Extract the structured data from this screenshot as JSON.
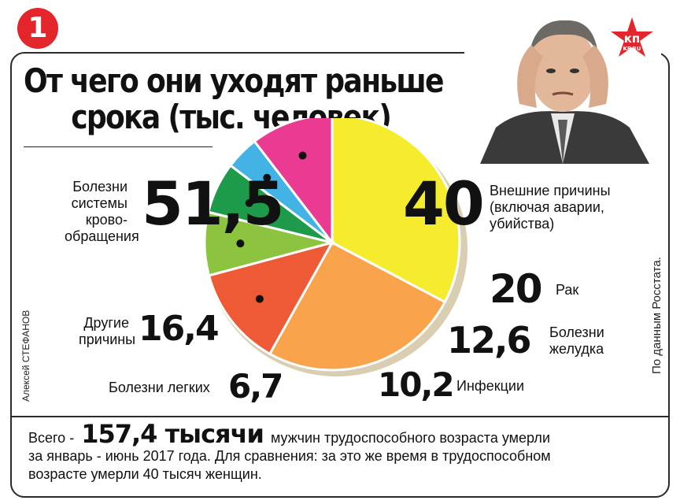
{
  "badge": "1",
  "title_line1": "От чего они уходят раньше",
  "title_line2": "срока (тыс. человек)",
  "logo_text": "кп",
  "logo_sub": "KP.RU",
  "credit_author": "Алексей СТЕФАНОВ",
  "credit_source": "По данным Росстата.",
  "footer": {
    "prefix": "Всего -",
    "total": "157,4 тысячи",
    "text_line1": "мужчин трудоспособного возраста умерли",
    "text_line2": "за январь - июнь 2017 года. Для сравнения: за это же время в трудоспособном",
    "text_line3": "возрасте умерли 40 тысяч женщин."
  },
  "colors": {
    "badge": "#e3262b",
    "circulatory": "#f5ec2e",
    "external": "#f9a44c",
    "cancer": "#ef5a36",
    "stomach": "#8cc43f",
    "infections": "#1e9b4a",
    "lungs": "#43b3e5",
    "other": "#ea3a91",
    "shadow": "#d9ceb2"
  },
  "chart_data": {
    "type": "pie",
    "title": "От чего они уходят раньше срока (тыс. человек)",
    "unit": "тыс. человек",
    "slices": [
      {
        "label": "Болезни системы крово- обращения",
        "value": 51.5,
        "display": "51,5"
      },
      {
        "label": "Внешние причины (включая аварии, убийства)",
        "value": 40,
        "display": "40"
      },
      {
        "label": "Рак",
        "value": 20,
        "display": "20"
      },
      {
        "label": "Болезни желудка",
        "value": 12.6,
        "display": "12,6"
      },
      {
        "label": "Инфекции",
        "value": 10.2,
        "display": "10,2"
      },
      {
        "label": "Болезни легких",
        "value": 6.7,
        "display": "6,7"
      },
      {
        "label": "Другие причины",
        "value": 16.4,
        "display": "16,4"
      }
    ],
    "labels": {
      "circ_l1": "Болезни",
      "circ_l2": "системы",
      "circ_l3": "крово-",
      "circ_l4": "обращения",
      "ext_l1": "Внешние причины",
      "ext_l2": "(включая аварии,",
      "ext_l3": "убийства)",
      "cancer": "Рак",
      "stom_l1": "Болезни",
      "stom_l2": "желудка",
      "inf": "Инфекции",
      "lung": "Болезни легких",
      "oth_l1": "Другие",
      "oth_l2": "причины"
    },
    "total": 157.4
  }
}
